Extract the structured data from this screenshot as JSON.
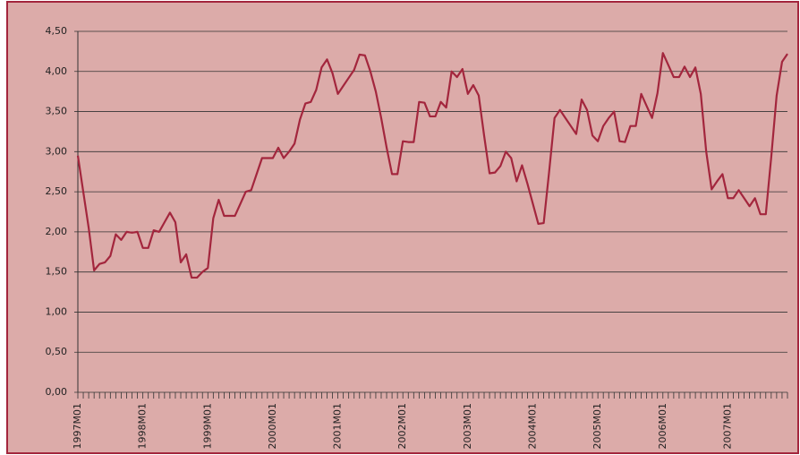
{
  "chart_data": {
    "type": "line",
    "categories": [
      "1997M01",
      null,
      null,
      null,
      null,
      null,
      null,
      null,
      null,
      null,
      null,
      null,
      "1998M01",
      null,
      null,
      null,
      null,
      null,
      null,
      null,
      null,
      null,
      null,
      null,
      "1999M01",
      null,
      null,
      null,
      null,
      null,
      null,
      null,
      null,
      null,
      null,
      null,
      "2000M01",
      null,
      null,
      null,
      null,
      null,
      null,
      null,
      null,
      null,
      null,
      null,
      "2001M01",
      null,
      null,
      null,
      null,
      null,
      null,
      null,
      null,
      null,
      null,
      null,
      "2002M01",
      null,
      null,
      null,
      null,
      null,
      null,
      null,
      null,
      null,
      null,
      null,
      "2003M01",
      null,
      null,
      null,
      null,
      null,
      null,
      null,
      null,
      null,
      null,
      null,
      "2004M01",
      null,
      null,
      null,
      null,
      null,
      null,
      null,
      null,
      null,
      null,
      null,
      "2005M01",
      null,
      null,
      null,
      null,
      null,
      null,
      null,
      null,
      null,
      null,
      null,
      "2006M01",
      null,
      null,
      null,
      null,
      null,
      null,
      null,
      null,
      null,
      null,
      null,
      "2007M01",
      null,
      null,
      null,
      null,
      null,
      null,
      null,
      null,
      null,
      null,
      null
    ],
    "values": [
      2.95,
      2.5,
      2.05,
      1.52,
      1.6,
      1.62,
      1.7,
      1.97,
      1.9,
      2.0,
      1.99,
      2.0,
      1.8,
      1.8,
      2.02,
      2.0,
      2.12,
      2.24,
      2.12,
      1.62,
      1.72,
      1.43,
      1.43,
      1.5,
      1.55,
      2.17,
      2.4,
      2.2,
      2.2,
      2.2,
      2.35,
      2.5,
      2.52,
      2.72,
      2.92,
      2.92,
      2.92,
      3.05,
      2.92,
      3.0,
      3.1,
      3.4,
      3.6,
      3.62,
      3.77,
      4.05,
      4.15,
      3.98,
      3.72,
      3.82,
      3.92,
      4.02,
      4.21,
      4.2,
      4.0,
      3.75,
      3.42,
      3.05,
      2.72,
      2.72,
      3.13,
      3.12,
      3.12,
      3.62,
      3.61,
      3.44,
      3.44,
      3.62,
      3.55,
      4.0,
      3.93,
      4.03,
      3.72,
      3.83,
      3.7,
      3.2,
      2.73,
      2.74,
      2.82,
      3.0,
      2.92,
      2.63,
      2.83,
      2.6,
      2.35,
      2.1,
      2.11,
      2.75,
      3.42,
      3.52,
      3.42,
      3.32,
      3.22,
      3.65,
      3.52,
      3.2,
      3.13,
      3.32,
      3.42,
      3.5,
      3.13,
      3.12,
      3.32,
      3.32,
      3.72,
      3.57,
      3.42,
      3.73,
      4.23,
      4.08,
      3.93,
      3.93,
      4.06,
      3.93,
      4.05,
      3.72,
      3.0,
      2.53,
      2.63,
      2.72,
      2.42,
      2.42,
      2.52,
      2.42,
      2.32,
      2.42,
      2.22,
      2.22,
      2.93,
      3.7,
      4.12,
      4.22
    ],
    "color": "#a3263d",
    "ylim": [
      0,
      4.5
    ],
    "yticks": [
      {
        "value": 0,
        "label": "0,00"
      },
      {
        "value": 0.5,
        "label": "0,50"
      },
      {
        "value": 1,
        "label": "1,00"
      },
      {
        "value": 1.5,
        "label": "1,50"
      },
      {
        "value": 2,
        "label": "2,00"
      },
      {
        "value": 2.5,
        "label": "2,50"
      },
      {
        "value": 3,
        "label": "3,00"
      },
      {
        "value": 3.5,
        "label": "3,50"
      },
      {
        "value": 4,
        "label": "4,00"
      },
      {
        "value": 4.5,
        "label": "4,50"
      }
    ],
    "grid": true
  }
}
